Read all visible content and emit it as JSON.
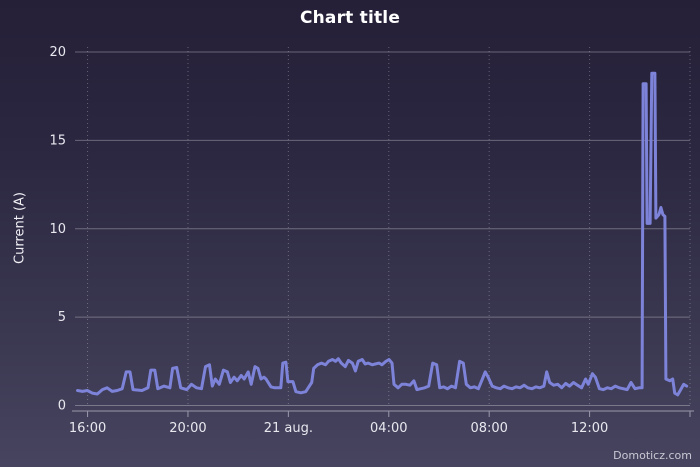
{
  "chart_data": {
    "type": "line",
    "title": "Chart title",
    "xlabel": "",
    "ylabel": "Current (A)",
    "legend": false,
    "grid": true,
    "ylim": [
      0,
      20
    ],
    "y_ticks": [
      0,
      5,
      10,
      15,
      20
    ],
    "x_unit_hours_from": "20 aug 15:30",
    "xlim": [
      0,
      24.5
    ],
    "x_ticks": [
      {
        "t": 0.5,
        "label": "16:00"
      },
      {
        "t": 4.5,
        "label": "20:00"
      },
      {
        "t": 8.5,
        "label": "21 aug."
      },
      {
        "t": 12.5,
        "label": "04:00"
      },
      {
        "t": 16.5,
        "label": "08:00"
      },
      {
        "t": 20.5,
        "label": "12:00"
      },
      {
        "t": 24.5,
        "label": ""
      }
    ],
    "points": [
      [
        0.1,
        0.85
      ],
      [
        0.3,
        0.8
      ],
      [
        0.49,
        0.85
      ],
      [
        0.69,
        0.7
      ],
      [
        0.89,
        0.65
      ],
      [
        1.09,
        0.9
      ],
      [
        1.28,
        1.0
      ],
      [
        1.48,
        0.8
      ],
      [
        1.68,
        0.85
      ],
      [
        1.88,
        0.95
      ],
      [
        2.04,
        1.9
      ],
      [
        2.19,
        1.9
      ],
      [
        2.31,
        0.9
      ],
      [
        2.67,
        0.85
      ],
      [
        2.91,
        1.0
      ],
      [
        3.02,
        2.0
      ],
      [
        3.18,
        2.0
      ],
      [
        3.3,
        0.95
      ],
      [
        3.54,
        1.1
      ],
      [
        3.78,
        1.0
      ],
      [
        3.89,
        2.1
      ],
      [
        4.05,
        2.15
      ],
      [
        4.21,
        1.0
      ],
      [
        4.45,
        0.9
      ],
      [
        4.64,
        1.2
      ],
      [
        4.84,
        1.0
      ],
      [
        5.04,
        0.95
      ],
      [
        5.2,
        2.2
      ],
      [
        5.36,
        2.3
      ],
      [
        5.47,
        1.1
      ],
      [
        5.59,
        1.5
      ],
      [
        5.75,
        1.2
      ],
      [
        5.91,
        2.0
      ],
      [
        6.07,
        1.9
      ],
      [
        6.19,
        1.3
      ],
      [
        6.34,
        1.6
      ],
      [
        6.46,
        1.4
      ],
      [
        6.62,
        1.7
      ],
      [
        6.74,
        1.5
      ],
      [
        6.9,
        1.9
      ],
      [
        7.02,
        1.2
      ],
      [
        7.17,
        2.2
      ],
      [
        7.29,
        2.1
      ],
      [
        7.41,
        1.5
      ],
      [
        7.53,
        1.6
      ],
      [
        7.61,
        1.5
      ],
      [
        7.81,
        1.05
      ],
      [
        7.96,
        1.0
      ],
      [
        8.2,
        1.0
      ],
      [
        8.28,
        2.4
      ],
      [
        8.4,
        2.45
      ],
      [
        8.48,
        1.35
      ],
      [
        8.68,
        1.35
      ],
      [
        8.8,
        0.78
      ],
      [
        9.0,
        0.72
      ],
      [
        9.19,
        0.78
      ],
      [
        9.43,
        1.3
      ],
      [
        9.51,
        2.1
      ],
      [
        9.66,
        2.3
      ],
      [
        9.82,
        2.4
      ],
      [
        9.98,
        2.3
      ],
      [
        10.1,
        2.5
      ],
      [
        10.26,
        2.6
      ],
      [
        10.38,
        2.5
      ],
      [
        10.49,
        2.65
      ],
      [
        10.61,
        2.4
      ],
      [
        10.77,
        2.2
      ],
      [
        10.89,
        2.55
      ],
      [
        11.05,
        2.4
      ],
      [
        11.17,
        1.95
      ],
      [
        11.28,
        2.5
      ],
      [
        11.44,
        2.6
      ],
      [
        11.56,
        2.35
      ],
      [
        11.68,
        2.4
      ],
      [
        11.84,
        2.3
      ],
      [
        11.96,
        2.35
      ],
      [
        12.11,
        2.4
      ],
      [
        12.23,
        2.3
      ],
      [
        12.39,
        2.5
      ],
      [
        12.51,
        2.6
      ],
      [
        12.63,
        2.4
      ],
      [
        12.71,
        1.2
      ],
      [
        12.87,
        1.0
      ],
      [
        13.02,
        1.2
      ],
      [
        13.18,
        1.2
      ],
      [
        13.34,
        1.15
      ],
      [
        13.5,
        1.4
      ],
      [
        13.62,
        0.9
      ],
      [
        13.78,
        0.95
      ],
      [
        13.93,
        1.0
      ],
      [
        14.09,
        1.1
      ],
      [
        14.25,
        2.4
      ],
      [
        14.41,
        2.3
      ],
      [
        14.53,
        1.0
      ],
      [
        14.68,
        1.05
      ],
      [
        14.84,
        0.95
      ],
      [
        15.0,
        1.1
      ],
      [
        15.16,
        1.0
      ],
      [
        15.32,
        2.5
      ],
      [
        15.47,
        2.4
      ],
      [
        15.59,
        1.2
      ],
      [
        15.75,
        1.0
      ],
      [
        15.91,
        1.05
      ],
      [
        16.07,
        0.95
      ],
      [
        16.23,
        1.5
      ],
      [
        16.34,
        1.9
      ],
      [
        16.46,
        1.6
      ],
      [
        16.62,
        1.1
      ],
      [
        16.78,
        1.0
      ],
      [
        16.94,
        0.95
      ],
      [
        17.09,
        1.1
      ],
      [
        17.25,
        1.0
      ],
      [
        17.41,
        0.95
      ],
      [
        17.57,
        1.05
      ],
      [
        17.73,
        1.0
      ],
      [
        17.89,
        1.15
      ],
      [
        18.04,
        1.0
      ],
      [
        18.2,
        0.95
      ],
      [
        18.36,
        1.05
      ],
      [
        18.52,
        1.0
      ],
      [
        18.68,
        1.1
      ],
      [
        18.79,
        1.9
      ],
      [
        18.91,
        1.3
      ],
      [
        19.07,
        1.15
      ],
      [
        19.23,
        1.2
      ],
      [
        19.39,
        1.0
      ],
      [
        19.55,
        1.25
      ],
      [
        19.7,
        1.1
      ],
      [
        19.86,
        1.3
      ],
      [
        20.02,
        1.15
      ],
      [
        20.18,
        1.0
      ],
      [
        20.34,
        1.5
      ],
      [
        20.45,
        1.2
      ],
      [
        20.61,
        1.8
      ],
      [
        20.73,
        1.6
      ],
      [
        20.89,
        0.95
      ],
      [
        21.05,
        0.9
      ],
      [
        21.21,
        1.0
      ],
      [
        21.36,
        0.95
      ],
      [
        21.52,
        1.1
      ],
      [
        21.68,
        1.0
      ],
      [
        21.84,
        0.95
      ],
      [
        22.0,
        0.9
      ],
      [
        22.15,
        1.3
      ],
      [
        22.31,
        0.95
      ],
      [
        22.47,
        1.0
      ],
      [
        22.59,
        1.0
      ],
      [
        22.63,
        18.2
      ],
      [
        22.75,
        18.2
      ],
      [
        22.79,
        10.3
      ],
      [
        22.91,
        10.3
      ],
      [
        22.98,
        18.8
      ],
      [
        23.1,
        18.8
      ],
      [
        23.14,
        10.6
      ],
      [
        23.26,
        10.8
      ],
      [
        23.34,
        11.2
      ],
      [
        23.42,
        10.8
      ],
      [
        23.5,
        10.7
      ],
      [
        23.54,
        1.5
      ],
      [
        23.7,
        1.4
      ],
      [
        23.81,
        1.5
      ],
      [
        23.89,
        0.7
      ],
      [
        24.01,
        0.6
      ],
      [
        24.13,
        0.9
      ],
      [
        24.25,
        1.2
      ],
      [
        24.37,
        1.1
      ]
    ]
  },
  "credits": {
    "label": "Domoticz.com"
  },
  "style": {
    "bg_top": "#251f37",
    "bg_bottom": "#474460",
    "line_color": "#7d83d8",
    "grid_color": "rgba(255,255,255,0.30)",
    "minor_grid_color": "rgba(255,255,255,0.28)",
    "axis_color": "#9a98ac",
    "tick_label_color": "#e8e8ef",
    "title_color": "#ffffff"
  }
}
